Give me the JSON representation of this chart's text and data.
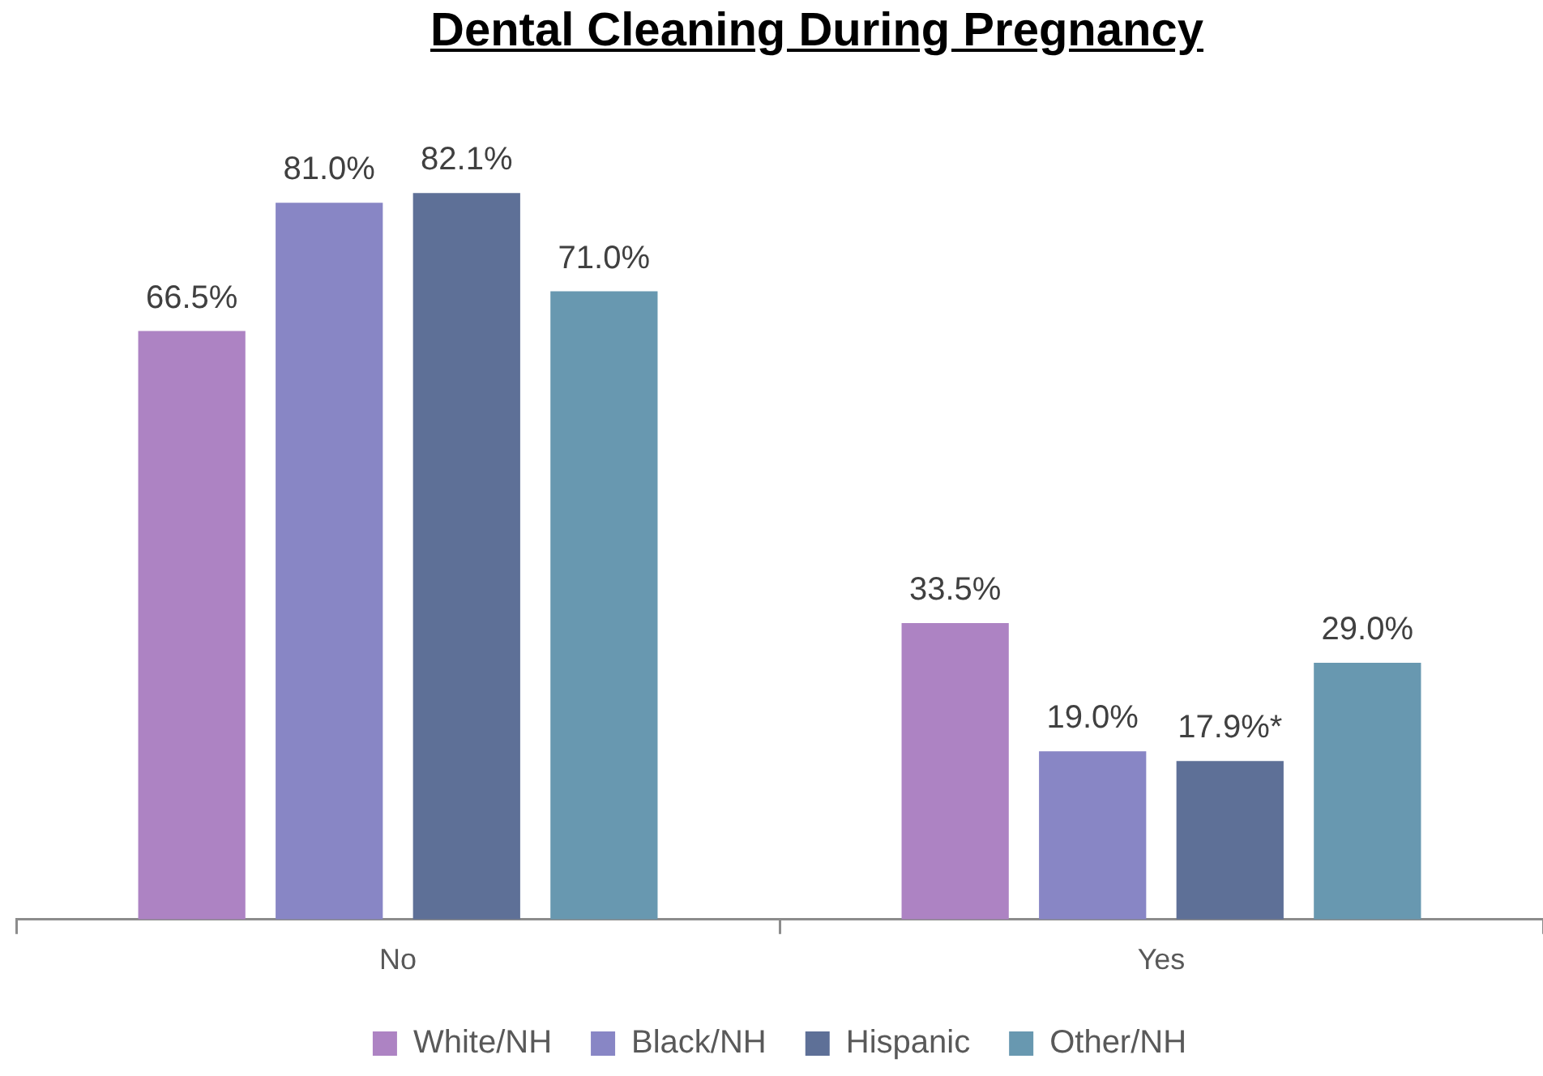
{
  "chart_data": {
    "type": "bar",
    "title": "Dental Cleaning During Pregnancy",
    "categories": [
      "No",
      "Yes"
    ],
    "series": [
      {
        "name": "White/NH",
        "color": "#ad83c3",
        "values": [
          66.5,
          33.5
        ],
        "value_labels": [
          "66.5%",
          "33.5%"
        ]
      },
      {
        "name": "Black/NH",
        "color": "#8886c5",
        "values": [
          81.0,
          19.0
        ],
        "value_labels": [
          "81.0%",
          "19.0%"
        ]
      },
      {
        "name": "Hispanic",
        "color": "#5e7097",
        "values": [
          82.1,
          17.9
        ],
        "value_labels": [
          "82.1%",
          "17.9%*"
        ]
      },
      {
        "name": "Other/NH",
        "color": "#6898b0",
        "values": [
          71.0,
          29.0
        ],
        "value_labels": [
          "71.0%",
          "29.0%"
        ]
      }
    ],
    "legend": "bottom"
  }
}
